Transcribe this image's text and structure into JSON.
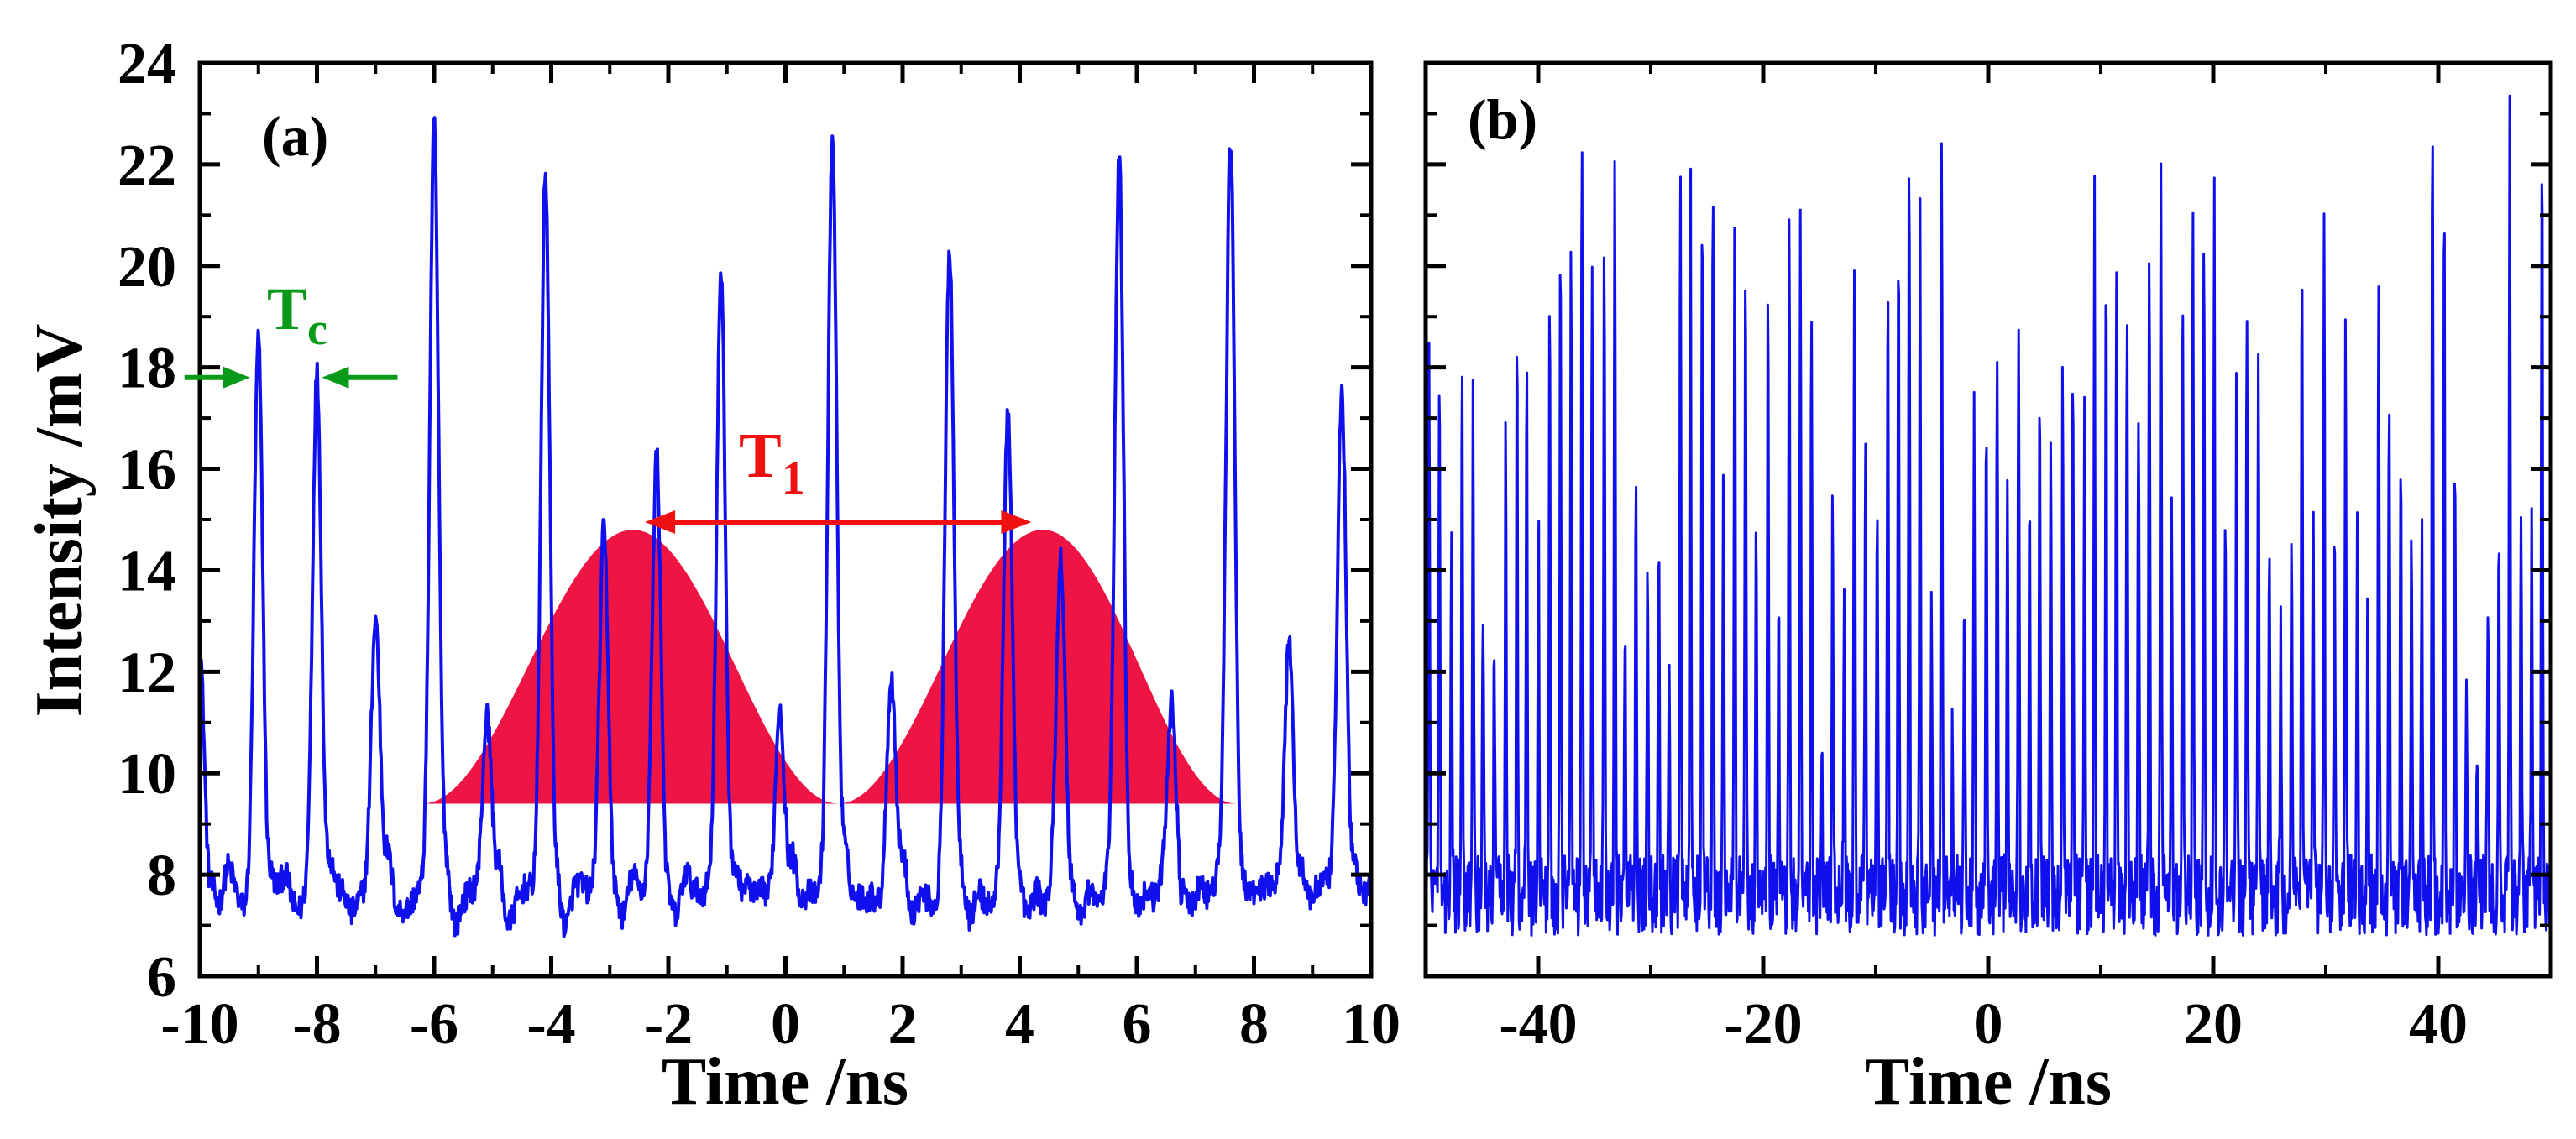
{
  "colors": {
    "signal": "#1010ee",
    "envelope": "#ee1444",
    "annotation_red": "#ee1111",
    "annotation_green": "#0a9a1a",
    "axis": "#000000"
  },
  "chart_data": [
    {
      "panel": "(a)",
      "type": "line",
      "xlabel": "Time /ns",
      "ylabel": "Intensity /mV",
      "xlim": [
        -10,
        10
      ],
      "ylim": [
        6,
        24
      ],
      "xticks": [
        "-10",
        "-8",
        "-6",
        "-4",
        "-2",
        "0",
        "2",
        "4",
        "6",
        "8",
        "10"
      ],
      "yticks": [
        "6",
        "8",
        "10",
        "12",
        "14",
        "16",
        "18",
        "20",
        "22",
        "24"
      ],
      "baseline_mV": 7.6,
      "pulse_times_ns": [
        -10,
        -9.0,
        -8.0,
        -7.0,
        -6.0,
        -5.1,
        -4.1,
        -3.1,
        -2.2,
        -1.1,
        -0.1,
        0.8,
        1.8,
        2.8,
        3.8,
        4.7,
        5.7,
        6.6,
        7.6,
        8.6,
        9.5
      ],
      "pulse_peaks_mV": [
        12.5,
        18.6,
        18.0,
        13.1,
        22.6,
        11.0,
        21.5,
        14.6,
        16.1,
        20.2,
        11.7,
        22.9,
        11.9,
        20.0,
        16.6,
        13.8,
        21.9,
        11.2,
        22.7,
        13.0,
        18.0
      ],
      "envelope": {
        "color_name": "red filled envelope",
        "base_mV": 9.4,
        "humps": [
          {
            "start_ns": -6.2,
            "peak_ns": -2.6,
            "end_ns": 0.9,
            "peak_mV": 14.8
          },
          {
            "start_ns": 0.9,
            "peak_ns": 4.4,
            "end_ns": 7.7,
            "peak_mV": 14.8
          }
        ]
      },
      "annotations": {
        "t1": {
          "label": "T",
          "subscript": "1",
          "from_ns": -2.4,
          "to_ns": 4.2,
          "at_mV": 14.95
        },
        "tc": {
          "label": "T",
          "subscript": "c",
          "left_pulse_ns": -9.0,
          "right_pulse_ns": -8.0,
          "at_mV": 17.8
        }
      }
    },
    {
      "panel": "(b)",
      "type": "line",
      "xlabel": "Time /ns",
      "xlim": [
        -50,
        50
      ],
      "ylim": [
        6,
        24
      ],
      "xticks": [
        "-40",
        "-20",
        "0",
        "20",
        "40"
      ],
      "baseline_mV": 7.6,
      "pulse_period_ns": 0.97,
      "pulse_peak_range_mV": [
        10.0,
        23.0
      ],
      "first_pulse_ns": -49.7
    }
  ]
}
